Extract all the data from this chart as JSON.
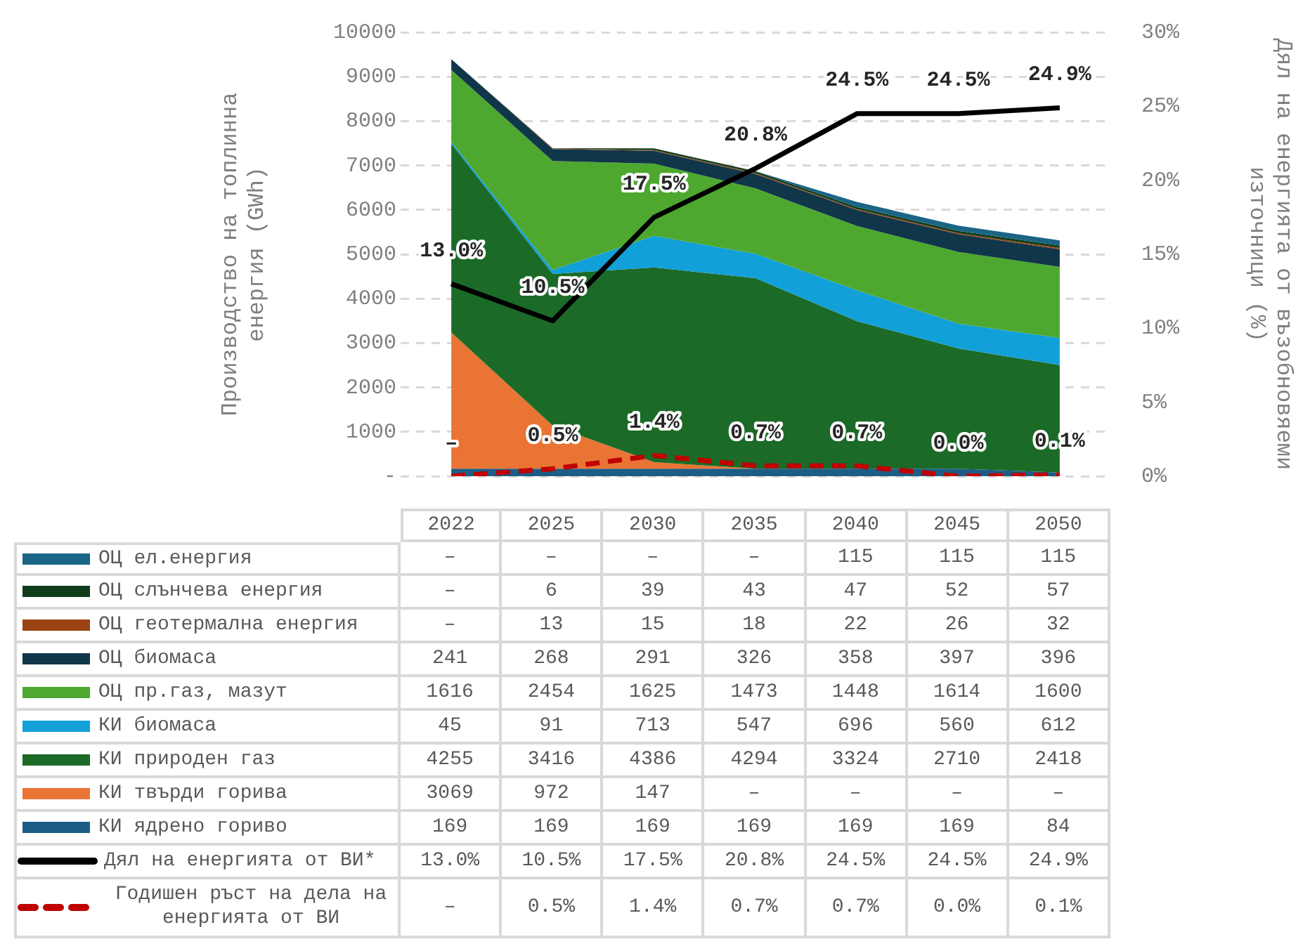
{
  "chart_data": {
    "type": "area",
    "stacked": true,
    "categories": [
      "2022",
      "2025",
      "2030",
      "2035",
      "2040",
      "2045",
      "2050"
    ],
    "ylabel": "Производство на топлинна енергия (GWh)",
    "y2label": "Дял на енергията от възобновяеми източници (%)",
    "ylim": [
      0,
      10000
    ],
    "yticks": [
      {
        "value": 0,
        "label": "-"
      },
      1000,
      2000,
      3000,
      4000,
      5000,
      6000,
      7000,
      8000,
      9000,
      10000
    ],
    "y2lim": [
      0,
      30
    ],
    "y2ticks": [
      {
        "value": 0,
        "label": "0%"
      },
      {
        "value": 5,
        "label": "5%"
      },
      {
        "value": 10,
        "label": "10%"
      },
      {
        "value": 15,
        "label": "15%"
      },
      {
        "value": 20,
        "label": "20%"
      },
      {
        "value": 25,
        "label": "25%"
      },
      {
        "value": 30,
        "label": "30%"
      }
    ],
    "grid": "y",
    "legend": "bottom",
    "marker": "none",
    "series": [
      {
        "name": "КИ ядрено гориво",
        "color": "#1c5d86",
        "values": [
          169,
          169,
          169,
          169,
          169,
          169,
          84
        ],
        "value_labels": [
          "169",
          "169",
          "169",
          "169",
          "169",
          "169",
          "84"
        ]
      },
      {
        "name": "КИ твърди горива",
        "color": "#ea7434",
        "values": [
          3069,
          972,
          147,
          0,
          0,
          0,
          0
        ],
        "value_labels": [
          "3069",
          "972",
          "147",
          "–",
          "–",
          "–",
          "–"
        ]
      },
      {
        "name": "КИ природен газ",
        "color": "#1b6a27",
        "values": [
          4255,
          3416,
          4386,
          4294,
          3324,
          2710,
          2418
        ],
        "value_labels": [
          "4255",
          "3416",
          "4386",
          "4294",
          "3324",
          "2710",
          "2418"
        ]
      },
      {
        "name": "КИ биомаса",
        "color": "#12a0d8",
        "values": [
          45,
          91,
          713,
          547,
          696,
          560,
          612
        ],
        "value_labels": [
          "45",
          "91",
          "713",
          "547",
          "696",
          "560",
          "612"
        ]
      },
      {
        "name": "ОЦ пр.газ, мазут",
        "color": "#4ea82f",
        "values": [
          1616,
          2454,
          1625,
          1473,
          1448,
          1614,
          1600
        ],
        "value_labels": [
          "1616",
          "2454",
          "1625",
          "1473",
          "1448",
          "1614",
          "1600"
        ]
      },
      {
        "name": "ОЦ биомаса",
        "color": "#10364a",
        "values": [
          241,
          268,
          291,
          326,
          358,
          397,
          396
        ],
        "value_labels": [
          "241",
          "268",
          "291",
          "326",
          "358",
          "397",
          "396"
        ]
      },
      {
        "name": "ОЦ геотермална енергия",
        "color": "#9a4212",
        "values": [
          0,
          13,
          15,
          18,
          22,
          26,
          32
        ],
        "value_labels": [
          "–",
          "13",
          "15",
          "18",
          "22",
          "26",
          "32"
        ]
      },
      {
        "name": "ОЦ слънчева енергия",
        "color": "#0f3d1c",
        "values": [
          0,
          6,
          39,
          43,
          47,
          52,
          57
        ],
        "value_labels": [
          "–",
          "6",
          "39",
          "43",
          "47",
          "52",
          "57"
        ]
      },
      {
        "name": "ОЦ ел.енергия",
        "color": "#1a6586",
        "values": [
          0,
          0,
          0,
          0,
          115,
          115,
          115
        ],
        "value_labels": [
          "–",
          "–",
          "–",
          "–",
          "115",
          "115",
          "115"
        ]
      },
      {
        "name": "Дял на енергията от ВИ*",
        "type": "line",
        "axis": "y2",
        "color": "#000000",
        "line_style": "solid",
        "values": [
          13.0,
          10.5,
          17.5,
          20.8,
          24.5,
          24.5,
          24.9
        ],
        "value_labels": [
          "13.0%",
          "10.5%",
          "17.5%",
          "20.8%",
          "24.5%",
          "24.5%",
          "24.9%"
        ]
      },
      {
        "name": "Годишен ръст на дела на енергията от ВИ",
        "type": "line",
        "axis": "y2",
        "color": "#c00000",
        "line_style": "dashed",
        "values": [
          0,
          0.5,
          1.4,
          0.7,
          0.7,
          0.0,
          0.1
        ],
        "value_labels": [
          "–",
          "0.5%",
          "1.4%",
          "0.7%",
          "0.7%",
          "0.0%",
          "0.1%"
        ]
      }
    ]
  }
}
